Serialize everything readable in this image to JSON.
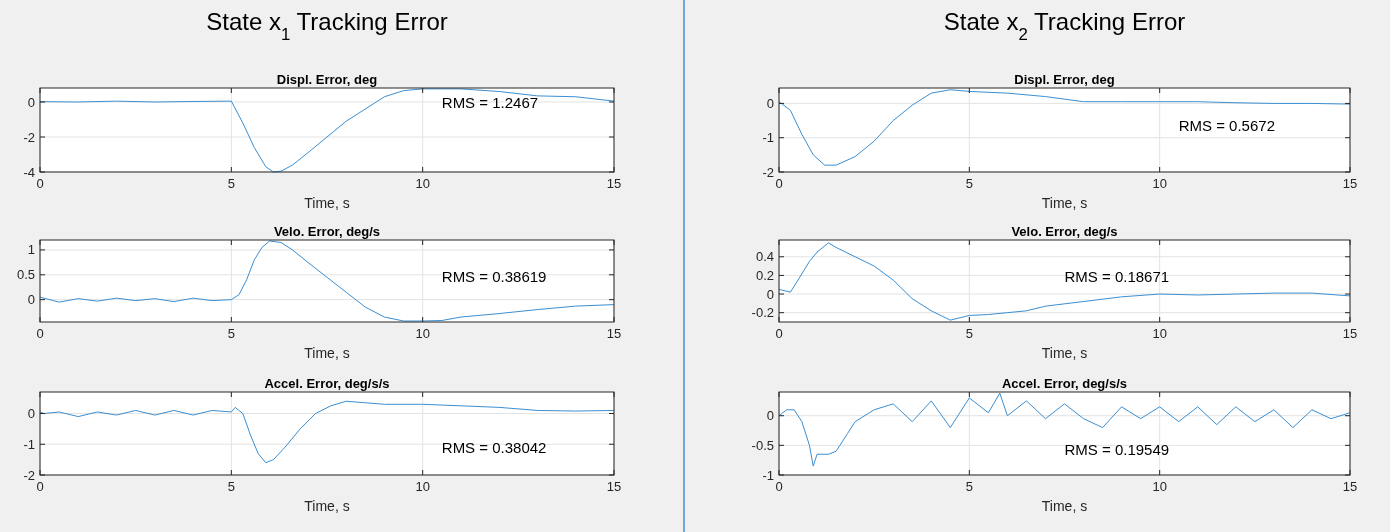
{
  "chart_data": [
    {
      "type": "line",
      "title": "Displ. Error, deg",
      "xlabel": "Time, s",
      "annotations": [
        "State x$_{1}$ Tracking Error",
        "RMS = 1.2467"
      ],
      "xlim": [
        0,
        15
      ],
      "xticks": [
        0,
        5,
        10,
        15
      ],
      "ylim": [
        -4,
        0.8
      ],
      "yticks": [
        -4,
        -2,
        0
      ],
      "grid": true,
      "series": [
        {
          "color": "#3a8fd3",
          "x": [
            0,
            1,
            2,
            3,
            4,
            5,
            5.3,
            5.6,
            5.9,
            6.1,
            6.3,
            6.6,
            7,
            7.5,
            8,
            8.5,
            9,
            9.5,
            10,
            11,
            12,
            13,
            14,
            15
          ],
          "values": [
            0.02,
            0.0,
            0.05,
            0.0,
            0.03,
            0.05,
            -1.2,
            -2.6,
            -3.7,
            -4.0,
            -3.95,
            -3.6,
            -2.9,
            -2.0,
            -1.1,
            -0.4,
            0.3,
            0.65,
            0.75,
            0.75,
            0.6,
            0.35,
            0.3,
            0.05
          ]
        }
      ]
    },
    {
      "type": "line",
      "title": "Velo. Error, deg/s",
      "xlabel": "Time, s",
      "annotations": [
        "RMS = 0.38619"
      ],
      "xlim": [
        0,
        15
      ],
      "xticks": [
        0,
        5,
        10,
        15
      ],
      "ylim": [
        -0.45,
        1.2
      ],
      "yticks": [
        0,
        0.5,
        1
      ],
      "grid": true,
      "series": [
        {
          "color": "#3a8fd3",
          "x": [
            0,
            0.5,
            1,
            1.5,
            2,
            2.5,
            3,
            3.5,
            4,
            4.5,
            5,
            5.2,
            5.4,
            5.6,
            5.8,
            6.0,
            6.3,
            6.6,
            7,
            7.5,
            8,
            8.5,
            9,
            9.5,
            10,
            10.5,
            11,
            12,
            13,
            14,
            15
          ],
          "values": [
            0.05,
            -0.05,
            0.02,
            -0.03,
            0.03,
            -0.02,
            0.02,
            -0.04,
            0.03,
            -0.02,
            0.0,
            0.1,
            0.4,
            0.8,
            1.05,
            1.18,
            1.15,
            1.0,
            0.75,
            0.45,
            0.15,
            -0.15,
            -0.35,
            -0.43,
            -0.43,
            -0.42,
            -0.35,
            -0.28,
            -0.2,
            -0.13,
            -0.1
          ]
        }
      ]
    },
    {
      "type": "line",
      "title": "Accel. Error, deg/s/s",
      "xlabel": "Time, s",
      "annotations": [
        "RMS = 0.38042"
      ],
      "xlim": [
        0,
        15
      ],
      "xticks": [
        0,
        5,
        10,
        15
      ],
      "ylim": [
        -2,
        0.7
      ],
      "yticks": [
        -2,
        -1,
        0
      ],
      "grid": true,
      "series": [
        {
          "color": "#3a8fd3",
          "x": [
            0,
            0.1,
            0.5,
            1,
            1.5,
            2,
            2.5,
            3,
            3.5,
            4,
            4.5,
            5,
            5.1,
            5.3,
            5.5,
            5.7,
            5.9,
            6.1,
            6.4,
            6.8,
            7.2,
            7.6,
            8,
            8.5,
            9,
            10,
            11,
            12,
            13,
            14,
            15
          ],
          "values": [
            0.05,
            0.0,
            0.05,
            -0.1,
            0.05,
            -0.05,
            0.1,
            -0.05,
            0.1,
            -0.05,
            0.1,
            0.05,
            0.2,
            0.0,
            -0.7,
            -1.3,
            -1.6,
            -1.5,
            -1.1,
            -0.5,
            0.0,
            0.25,
            0.4,
            0.35,
            0.3,
            0.3,
            0.25,
            0.2,
            0.1,
            0.08,
            0.1
          ]
        }
      ]
    },
    {
      "type": "line",
      "title": "Displ. Error, deg",
      "xlabel": "Time, s",
      "annotations": [
        "State x$_{2}$ Tracking Error",
        "RMS = 0.5672"
      ],
      "xlim": [
        0,
        15
      ],
      "xticks": [
        0,
        5,
        10,
        15
      ],
      "ylim": [
        -2,
        0.45
      ],
      "yticks": [
        -2,
        -1,
        0
      ],
      "grid": true,
      "series": [
        {
          "color": "#3a8fd3",
          "x": [
            0,
            0.3,
            0.6,
            0.9,
            1.2,
            1.5,
            2,
            2.5,
            3,
            3.5,
            4,
            4.5,
            5,
            6,
            7,
            8,
            9,
            10,
            11,
            12,
            13,
            14,
            15
          ],
          "values": [
            0.05,
            -0.2,
            -0.9,
            -1.5,
            -1.8,
            -1.8,
            -1.55,
            -1.1,
            -0.5,
            -0.05,
            0.3,
            0.4,
            0.35,
            0.3,
            0.2,
            0.05,
            0.05,
            0.05,
            0.05,
            0.02,
            0.0,
            0.0,
            -0.02
          ]
        }
      ]
    },
    {
      "type": "line",
      "title": "Velo. Error, deg/s",
      "xlabel": "Time, s",
      "annotations": [
        "RMS = 0.18671"
      ],
      "xlim": [
        0,
        15
      ],
      "xticks": [
        0,
        5,
        10,
        15
      ],
      "ylim": [
        -0.3,
        0.58
      ],
      "yticks": [
        -0.2,
        0,
        0.2,
        0.4
      ],
      "grid": true,
      "series": [
        {
          "color": "#3a8fd3",
          "x": [
            0,
            0.3,
            0.5,
            0.8,
            1,
            1.3,
            1.5,
            2,
            2.5,
            3,
            3.5,
            4,
            4.5,
            5,
            5.5,
            6,
            6.5,
            7,
            8,
            9,
            10,
            11,
            12,
            13,
            14,
            15
          ],
          "values": [
            0.05,
            0.02,
            0.15,
            0.35,
            0.45,
            0.55,
            0.5,
            0.4,
            0.3,
            0.15,
            -0.05,
            -0.18,
            -0.28,
            -0.23,
            -0.22,
            -0.2,
            -0.18,
            -0.13,
            -0.08,
            -0.03,
            0.0,
            -0.01,
            0.0,
            0.01,
            0.01,
            -0.02
          ]
        }
      ]
    },
    {
      "type": "line",
      "title": "Accel. Error, deg/s/s",
      "xlabel": "Time, s",
      "annotations": [
        "RMS = 0.19549"
      ],
      "xlim": [
        0,
        15
      ],
      "xticks": [
        0,
        5,
        10,
        15
      ],
      "ylim": [
        -1,
        0.4
      ],
      "yticks": [
        -1,
        -0.5,
        0
      ],
      "grid": true,
      "series": [
        {
          "color": "#3a8fd3",
          "x": [
            0,
            0.2,
            0.4,
            0.6,
            0.8,
            0.9,
            1,
            1.3,
            1.5,
            1.8,
            2,
            2.5,
            3,
            3.5,
            4,
            4.5,
            5,
            5.5,
            5.8,
            6,
            6.5,
            7,
            7.5,
            8,
            8.5,
            9,
            9.5,
            10,
            10.5,
            11,
            11.5,
            12,
            12.5,
            13,
            13.5,
            14,
            14.5,
            15
          ],
          "values": [
            0,
            0.1,
            0.1,
            -0.1,
            -0.5,
            -0.85,
            -0.65,
            -0.65,
            -0.6,
            -0.3,
            -0.1,
            0.1,
            0.2,
            -0.1,
            0.25,
            -0.2,
            0.3,
            0.05,
            0.38,
            0.0,
            0.25,
            -0.05,
            0.2,
            -0.05,
            -0.2,
            0.15,
            -0.05,
            0.15,
            -0.1,
            0.15,
            -0.15,
            0.15,
            -0.1,
            0.1,
            -0.2,
            0.1,
            -0.05,
            0.05
          ]
        }
      ]
    }
  ]
}
